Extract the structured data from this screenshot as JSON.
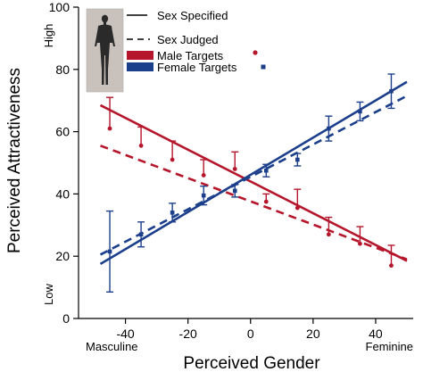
{
  "chart_data": {
    "type": "scatter",
    "xlabel": "Perceived Gender",
    "ylabel": "Perceived Attractiveness",
    "xlim": [
      -55,
      52
    ],
    "ylim": [
      0,
      100
    ],
    "x_ticks": [
      -40,
      -20,
      0,
      20,
      40
    ],
    "y_ticks": [
      0,
      20,
      40,
      60,
      80,
      100
    ],
    "x_end_labels": {
      "left": "Masculine",
      "right": "Feminine"
    },
    "y_end_labels": {
      "top": "High",
      "bottom": "Low"
    },
    "legend": {
      "placement": "top-left",
      "line_items": [
        {
          "label": "Sex Specified",
          "style": "solid"
        },
        {
          "label": "Sex Judged",
          "style": "dashed"
        }
      ],
      "series_items": [
        {
          "label": "Male Targets",
          "color": "#b5162b",
          "marker": "circle"
        },
        {
          "label": "Female Targets",
          "color": "#1c3f8c",
          "marker": "square"
        }
      ],
      "icon": "human-figure-icon"
    },
    "series": [
      {
        "name": "Male Targets",
        "color": "#b5162b",
        "marker": "circle",
        "points": [
          {
            "x": -45,
            "y": 61,
            "err": 10
          },
          {
            "x": -35,
            "y": 55.5,
            "err": 6
          },
          {
            "x": -25,
            "y": 51,
            "err": 6
          },
          {
            "x": -15,
            "y": 46,
            "err": 5
          },
          {
            "x": -5,
            "y": 48,
            "err": 5.5
          },
          {
            "x": 5,
            "y": 37.5,
            "err": 2.5
          },
          {
            "x": 15,
            "y": 35.5,
            "err": 6
          },
          {
            "x": 25,
            "y": 27,
            "err": 5.5
          },
          {
            "x": 35,
            "y": 24,
            "err": 5.5
          },
          {
            "x": 45,
            "y": 17,
            "err": 6.5
          }
        ],
        "fit_specified": {
          "x": [
            -48,
            50
          ],
          "y": [
            68.5,
            18.5
          ]
        },
        "fit_judged": {
          "x": [
            -48,
            50
          ],
          "y": [
            55.5,
            19
          ]
        }
      },
      {
        "name": "Female Targets",
        "color": "#1c3f8c",
        "marker": "square",
        "points": [
          {
            "x": -45,
            "y": 21.5,
            "err": 13
          },
          {
            "x": -35,
            "y": 27,
            "err": 4
          },
          {
            "x": -25,
            "y": 34,
            "err": 3
          },
          {
            "x": -15,
            "y": 39.5,
            "err": 3
          },
          {
            "x": -5,
            "y": 41,
            "err": 2
          },
          {
            "x": 5,
            "y": 47.5,
            "err": 2
          },
          {
            "x": 15,
            "y": 51,
            "err": 2
          },
          {
            "x": 25,
            "y": 61,
            "err": 4
          },
          {
            "x": 35,
            "y": 66.5,
            "err": 3
          },
          {
            "x": 45,
            "y": 73,
            "err": 5.5
          }
        ],
        "fit_specified": {
          "x": [
            -48,
            50
          ],
          "y": [
            17.5,
            76
          ]
        },
        "fit_judged": {
          "x": [
            -48,
            50
          ],
          "y": [
            20.5,
            71.5
          ]
        }
      }
    ]
  }
}
